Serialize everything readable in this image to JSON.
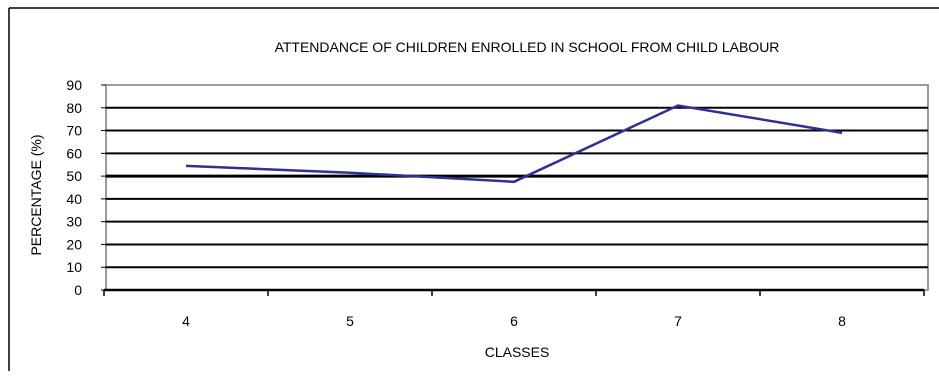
{
  "chart_data": {
    "type": "line",
    "title": "ATTENDANCE OF CHILDREN ENROLLED IN SCHOOL FROM CHILD LABOUR",
    "xlabel": "CLASSES",
    "ylabel": "PERCENTAGE (%)",
    "categories": [
      "4",
      "5",
      "6",
      "7",
      "8"
    ],
    "series": [
      {
        "values": [
          54.5,
          51.5,
          47.5,
          81,
          69
        ]
      }
    ],
    "ylim": [
      0,
      90
    ],
    "yticks": [
      "0",
      "10",
      "20",
      "30",
      "40",
      "50",
      "60",
      "70",
      "80",
      "90"
    ],
    "grid": true,
    "legend": "none",
    "colors": {
      "line": "#2e3192",
      "grid": "#000000",
      "plot_border": "#9a9a9a",
      "frame_border": "#000000"
    }
  }
}
